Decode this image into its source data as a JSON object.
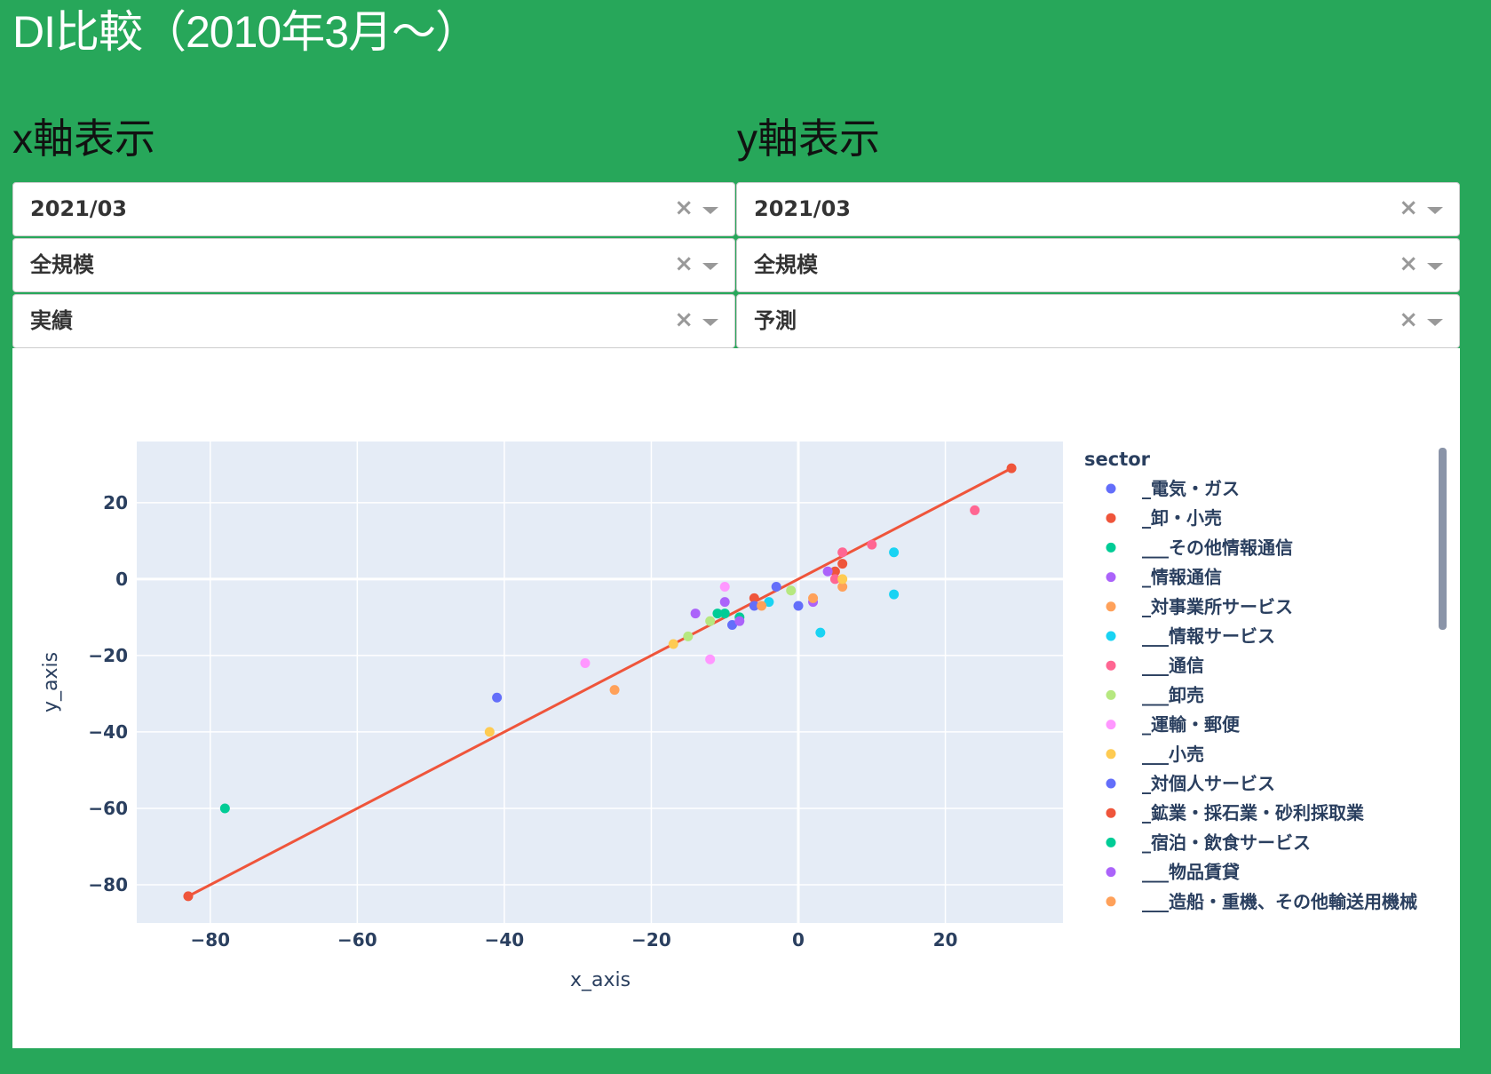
{
  "page": {
    "title": "DI比較（2010年3月～）",
    "x_heading": "x軸表示",
    "y_heading": "y軸表示",
    "background_color": "#27a75a"
  },
  "controls": {
    "x": {
      "period": "2021/03",
      "scale": "全規模",
      "type": "実績"
    },
    "y": {
      "period": "2021/03",
      "scale": "全規模",
      "type": "予測"
    },
    "clear_icon": "×",
    "arrow_icon": "chevron-down-icon"
  },
  "chart_data": {
    "type": "scatter",
    "xlabel": "x_axis",
    "ylabel": "y_axis",
    "xlim": [
      -90,
      36
    ],
    "ylim": [
      -90,
      36
    ],
    "xticks": [
      -80,
      -60,
      -40,
      -20,
      0,
      20
    ],
    "yticks": [
      20,
      0,
      -20,
      -40,
      -60,
      -80
    ],
    "grid": true,
    "legend_title": "sector",
    "legend_placement": "right",
    "series": [
      {
        "name": "_電気・ガス",
        "color": "#636efa",
        "points": [
          [
            -41,
            -31
          ],
          [
            0,
            -7
          ],
          [
            -3,
            -2
          ],
          [
            -9,
            -12
          ]
        ]
      },
      {
        "name": "_卸・小売",
        "color": "#EF553B",
        "points": [
          [
            -6,
            -5
          ],
          [
            5,
            2
          ],
          [
            6,
            4
          ]
        ]
      },
      {
        "name": "___その他情報通信",
        "color": "#00cc96",
        "points": [
          [
            -78,
            -60
          ],
          [
            -8,
            -10
          ]
        ]
      },
      {
        "name": "_情報通信",
        "color": "#ab63fa",
        "points": [
          [
            -10,
            -6
          ],
          [
            2,
            -6
          ],
          [
            -14,
            -9
          ]
        ]
      },
      {
        "name": "_対事業所サービス",
        "color": "#FFA15A",
        "points": [
          [
            -25,
            -29
          ],
          [
            6,
            -2
          ],
          [
            2,
            -5
          ]
        ]
      },
      {
        "name": "___情報サービス",
        "color": "#19d3f3",
        "points": [
          [
            13,
            7
          ],
          [
            13,
            -4
          ],
          [
            3,
            -14
          ],
          [
            -4,
            -6
          ]
        ]
      },
      {
        "name": "___通信",
        "color": "#FF6692",
        "points": [
          [
            24,
            18
          ],
          [
            10,
            9
          ],
          [
            6,
            7
          ],
          [
            5,
            0
          ]
        ]
      },
      {
        "name": "___卸売",
        "color": "#B6E880",
        "points": [
          [
            -1,
            -3
          ],
          [
            -12,
            -11
          ],
          [
            -15,
            -15
          ]
        ]
      },
      {
        "name": "_運輸・郵便",
        "color": "#FF97FF",
        "points": [
          [
            -29,
            -22
          ],
          [
            -12,
            -21
          ],
          [
            -10,
            -2
          ]
        ]
      },
      {
        "name": "___小売",
        "color": "#FECB52",
        "points": [
          [
            -42,
            -40
          ],
          [
            -17,
            -17
          ],
          [
            6,
            0
          ]
        ]
      },
      {
        "name": "_対個人サービス",
        "color": "#636efa",
        "points": [
          [
            -6,
            -7
          ]
        ]
      },
      {
        "name": "_鉱業・採石業・砂利採取業",
        "color": "#EF553B",
        "points": [
          [
            -83,
            -83
          ],
          [
            29,
            29
          ]
        ]
      },
      {
        "name": "_宿泊・飲食サービス",
        "color": "#00cc96",
        "points": [
          [
            -11,
            -9
          ],
          [
            -10,
            -9
          ]
        ]
      },
      {
        "name": "___物品賃貸",
        "color": "#ab63fa",
        "points": [
          [
            4,
            2
          ],
          [
            -8,
            -11
          ]
        ]
      },
      {
        "name": "___造船・重機、その他輸送用機械",
        "color": "#FFA15A",
        "points": [
          [
            -5,
            -7
          ]
        ]
      }
    ],
    "fit_line": {
      "color": "#EF553B",
      "from": [
        -83,
        -83
      ],
      "to": [
        29,
        29
      ]
    }
  }
}
